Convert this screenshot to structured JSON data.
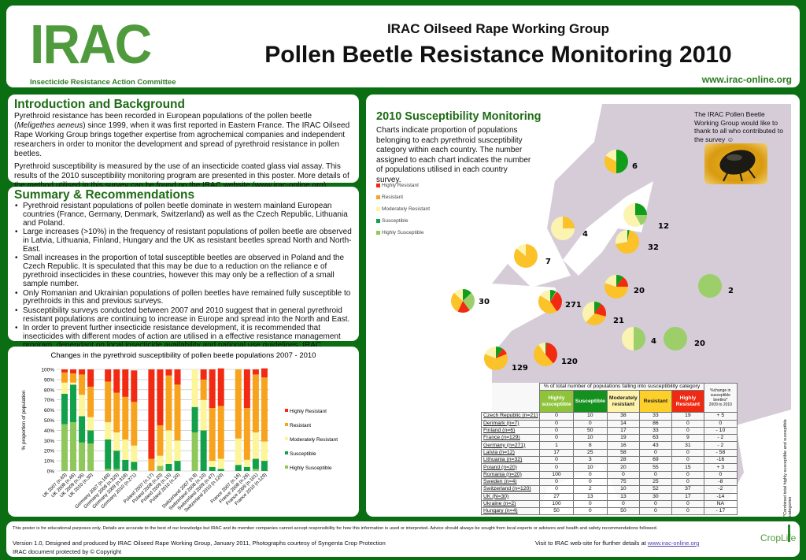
{
  "header": {
    "logo_text": "IRAC",
    "logo_subtitle": "Insecticide Resistance Action Committee",
    "working_group": "IRAC Oilseed Rape Working Group",
    "title": "Pollen Beetle Resistance Monitoring 2010",
    "url": "www.irac-online.org"
  },
  "intro": {
    "heading": "Introduction and Background",
    "p1_a": "Pyrethroid resistance has been recorded in European populations of the pollen beetle (",
    "p1_species": "Meligethes aeneus",
    "p1_b": ") since 1999, when it was first reported in Eastern France. The IRAC Oilseed Rape Working Group brings together expertise from agrochemical companies and independent researchers in order to monitor the development and spread of pyrethroid resistance in pollen beetles.",
    "p2": "Pyrethroid susceptibility is measured by the use of an insecticide coated glass vial assay. This results of the 2010 susceptibility monitoring program are presented in this poster. More details of the method utilised  in this survey can be found on the IRAC website (www.irac-online.org)."
  },
  "summary": {
    "heading": "Summary & Recommendations",
    "bullets": [
      "Pyrethroid resistant populations of pollen beetle dominate in western mainland European countries (France, Germany, Denmark, Switzerland) as well as the Czech Republic, Lithuania and Poland.",
      "Large increases (>10%) in the frequency of resistant populations of pollen beetle are observed in Latvia, Lithuania, Finland, Hungary and the UK as resistant beetles spread North and North-East.",
      "Small increases in the proportion of total susceptible beetles are observed in Poland and the Czech Republic. It is speculated that this may be due to a reduction on the reliance e of pyrethroid insecticides in these countries, however this may only be a reflection of a small sample number.",
      "Only Romanian and Ukrainian populations of pollen beetles have remained fully susceptible to pyrethroids in this and previous surveys.",
      "Susceptibility surveys conducted between 2007 and 2010 suggest that in general pyrethroid resistant populations are continuing to increase in Europe and spread into the North and East.",
      "In order to prevent further insecticide resistance development, it is recommended that insecticides with different modes of action are utilised in a effective resistance management program, dependant on local insecticide availability and national use guidelines. IRAC guidelines for resistance management in oilseed rape can be found on the IRAC web-site."
    ]
  },
  "colors": {
    "Highly Resistant": "#f22a12",
    "Resistant": "#f8a31e",
    "Moderately Resistant": "#fdf59a",
    "Susceptible": "#13a04a",
    "Highly Susceptible": "#8fc85a",
    "pie_resistant": "#fbc22a",
    "pie_mod": "#fbf4b0",
    "pie_susc": "#119d1c",
    "pie_hs": "#9ccf6a",
    "background": "#0b6e12",
    "heading": "#1e6b15"
  },
  "chart_data": {
    "type": "bar",
    "stacked": true,
    "title": "Changes in the pyrethroid susceptibility of pollen beetle populations 2007 - 2010",
    "ylabel": "% proportion of population",
    "ylim": [
      0,
      100
    ],
    "yticks": [
      "0%",
      "10%",
      "20%",
      "30%",
      "40%",
      "50%",
      "60%",
      "70%",
      "80%",
      "90%",
      "100%"
    ],
    "grid": true,
    "legend_position": "right",
    "groups": [
      [
        "UK 2007 (n.63)",
        "UK 2008 (n.46)",
        "UK 2009 (n.56)",
        "UK 2010 (n.30)"
      ],
      [
        "Germany 2007 (n.169)",
        "Germany 2008 (n.325)",
        "Germany 2009 (n.318)",
        "Germany 2010 (n.271)"
      ],
      [
        "Poland 2007 (n.17)",
        "Poland 2008 (n.20)",
        "Poland 2009 (n.15)",
        "Poland 2010 (n.20)"
      ],
      [
        "Switzerland 2007 (n.8)",
        "Switzerland 2008 (n.10)",
        "Switzerland 2009 (n.47)",
        "Switzerland 2010 (n.120)"
      ],
      [
        "France 2007 (n.16)",
        "France 2008 (n.26)",
        "France 2009 (n.101)",
        "France 2010 (n.129)"
      ]
    ],
    "series": [
      {
        "name": "Highly Susceptible",
        "values": [
          46,
          48,
          28,
          27,
          2,
          2,
          0,
          1,
          0,
          5,
          0,
          0,
          38,
          0,
          0,
          0,
          0,
          0,
          2,
          0
        ]
      },
      {
        "name": "Susceptible",
        "values": [
          30,
          37,
          26,
          13,
          29,
          18,
          11,
          8,
          0,
          0,
          7,
          10,
          25,
          40,
          4,
          2,
          6,
          4,
          10,
          10
        ]
      },
      {
        "name": "Moderately Resistant",
        "values": [
          11,
          2,
          21,
          13,
          17,
          18,
          20,
          16,
          0,
          10,
          33,
          20,
          37,
          30,
          6,
          10,
          26,
          7,
          26,
          19
        ]
      },
      {
        "name": "Resistant",
        "values": [
          10,
          9,
          20,
          30,
          40,
          39,
          42,
          43,
          12,
          30,
          54,
          55,
          0,
          20,
          52,
          52,
          68,
          51,
          57,
          63
        ]
      },
      {
        "name": "Highly Resistant",
        "values": [
          3,
          4,
          5,
          17,
          12,
          23,
          27,
          31,
          88,
          55,
          6,
          15,
          0,
          10,
          38,
          37,
          0,
          38,
          5,
          9
        ]
      }
    ]
  },
  "map": {
    "title": "2010 Susceptibility Monitoring",
    "description": "Charts indicate proportion of populations belonging to each pyrethroid susceptibility category within each country. The number assigned to each chart indicates the number of populations utilised in each country survey.",
    "legend": [
      "Highly Resistant",
      "Resistant",
      "Moderately Resistant",
      "Susceptible",
      "Highly Susceptible"
    ],
    "thanks": "The IRAC Pollen Beetle Working Group would like to thank to all who contributed to the survey ☺",
    "photo": "pollen-beetle-photo",
    "pies": [
      {
        "country": "Finland",
        "n": "6"
      },
      {
        "country": "Sweden",
        "n": "4"
      },
      {
        "country": "Latvia",
        "n": "12"
      },
      {
        "country": "Lithuania",
        "n": "32"
      },
      {
        "country": "Denmark",
        "n": "7"
      },
      {
        "country": "UK",
        "n": "30"
      },
      {
        "country": "Germany",
        "n": "271"
      },
      {
        "country": "Poland",
        "n": "20"
      },
      {
        "country": "Czech Republic",
        "n": "21"
      },
      {
        "country": "Ukraine",
        "n": "2"
      },
      {
        "country": "Hungary",
        "n": "4"
      },
      {
        "country": "Romania",
        "n": "20"
      },
      {
        "country": "France",
        "n": "129"
      },
      {
        "country": "Switzerland",
        "n": "120"
      }
    ]
  },
  "table": {
    "group_header": "% of total number of populations falling into susceptibility category",
    "columns": [
      "Highly susceptible",
      "Susceptible",
      "Moderately resistant",
      "Resistant",
      "Highly Resistant"
    ],
    "change_header": "%change in susceptible beetles*",
    "change_period": "2009 to 2010",
    "note": "*Combined total highly susceptible and susceptible categories",
    "rows": [
      {
        "country": "Czech Republic (n=21)",
        "values": [
          "0",
          "10",
          "38",
          "33",
          "19"
        ],
        "change": "+ 5"
      },
      {
        "country": "Denmark (n=7)",
        "values": [
          "0",
          "0",
          "14",
          "86",
          "0"
        ],
        "change": "0"
      },
      {
        "country": "Finland (n=6)",
        "values": [
          "0",
          "50",
          "17",
          "33",
          "0"
        ],
        "change": "- 10"
      },
      {
        "country": "France (n=129)",
        "values": [
          "0",
          "10",
          "19",
          "63",
          "9"
        ],
        "change": "- 2"
      },
      {
        "country": "Germany (n=271)",
        "values": [
          "1",
          "8",
          "16",
          "43",
          "31"
        ],
        "change": "- 2"
      },
      {
        "country": "Latvia (n=12)",
        "values": [
          "17",
          "25",
          "58",
          "0",
          "0"
        ],
        "change": "- 58"
      },
      {
        "country": "Lithuania (n=32)",
        "values": [
          "0",
          "3",
          "28",
          "69",
          "0"
        ],
        "change": "-16"
      },
      {
        "country": "Poland (n=20)",
        "values": [
          "0",
          "10",
          "20",
          "55",
          "15"
        ],
        "change": "+ 3"
      },
      {
        "country": "Romania (n=20)",
        "values": [
          "100",
          "0",
          "0",
          "0",
          "0"
        ],
        "change": "0"
      },
      {
        "country": "Sweden (n=4)",
        "values": [
          "0",
          "0",
          "75",
          "25",
          "0"
        ],
        "change": "-8"
      },
      {
        "country": "Switzerland (n=120)",
        "values": [
          "0",
          "2",
          "10",
          "52",
          "37"
        ],
        "change": "-2"
      },
      {
        "country": "UK (N=30)",
        "values": [
          "27",
          "13",
          "13",
          "30",
          "17"
        ],
        "change": "-14"
      },
      {
        "country": "Ukraine (n=2)",
        "values": [
          "100",
          "0",
          "0",
          "0",
          "0"
        ],
        "change": "NA"
      },
      {
        "country": "Hungary (n=4)",
        "values": [
          "50",
          "0",
          "50",
          "0",
          "0"
        ],
        "change": "- 17"
      }
    ]
  },
  "footer": {
    "disclaimer": "This poster is for educational purposes only. Details are accurate to the best of our knowledge but IRAC and its member companies cannot accept responsibility for how this information is used or interpreted. Advice should always be sought from local experts or advisors and health and safety recommendations followed.",
    "version": "Version 1.0, Designed and produced by IRAC Oilseed Rape Working Group, January 2011, Photographs courtesy of Syngenta Crop Protection",
    "copyright": "IRAC document protected by © Copyright",
    "visit_text": "Visit to IRAC web-site for flurther details at ",
    "visit_link": "www.irac-online.org",
    "croplife_logo": "CropLife"
  }
}
